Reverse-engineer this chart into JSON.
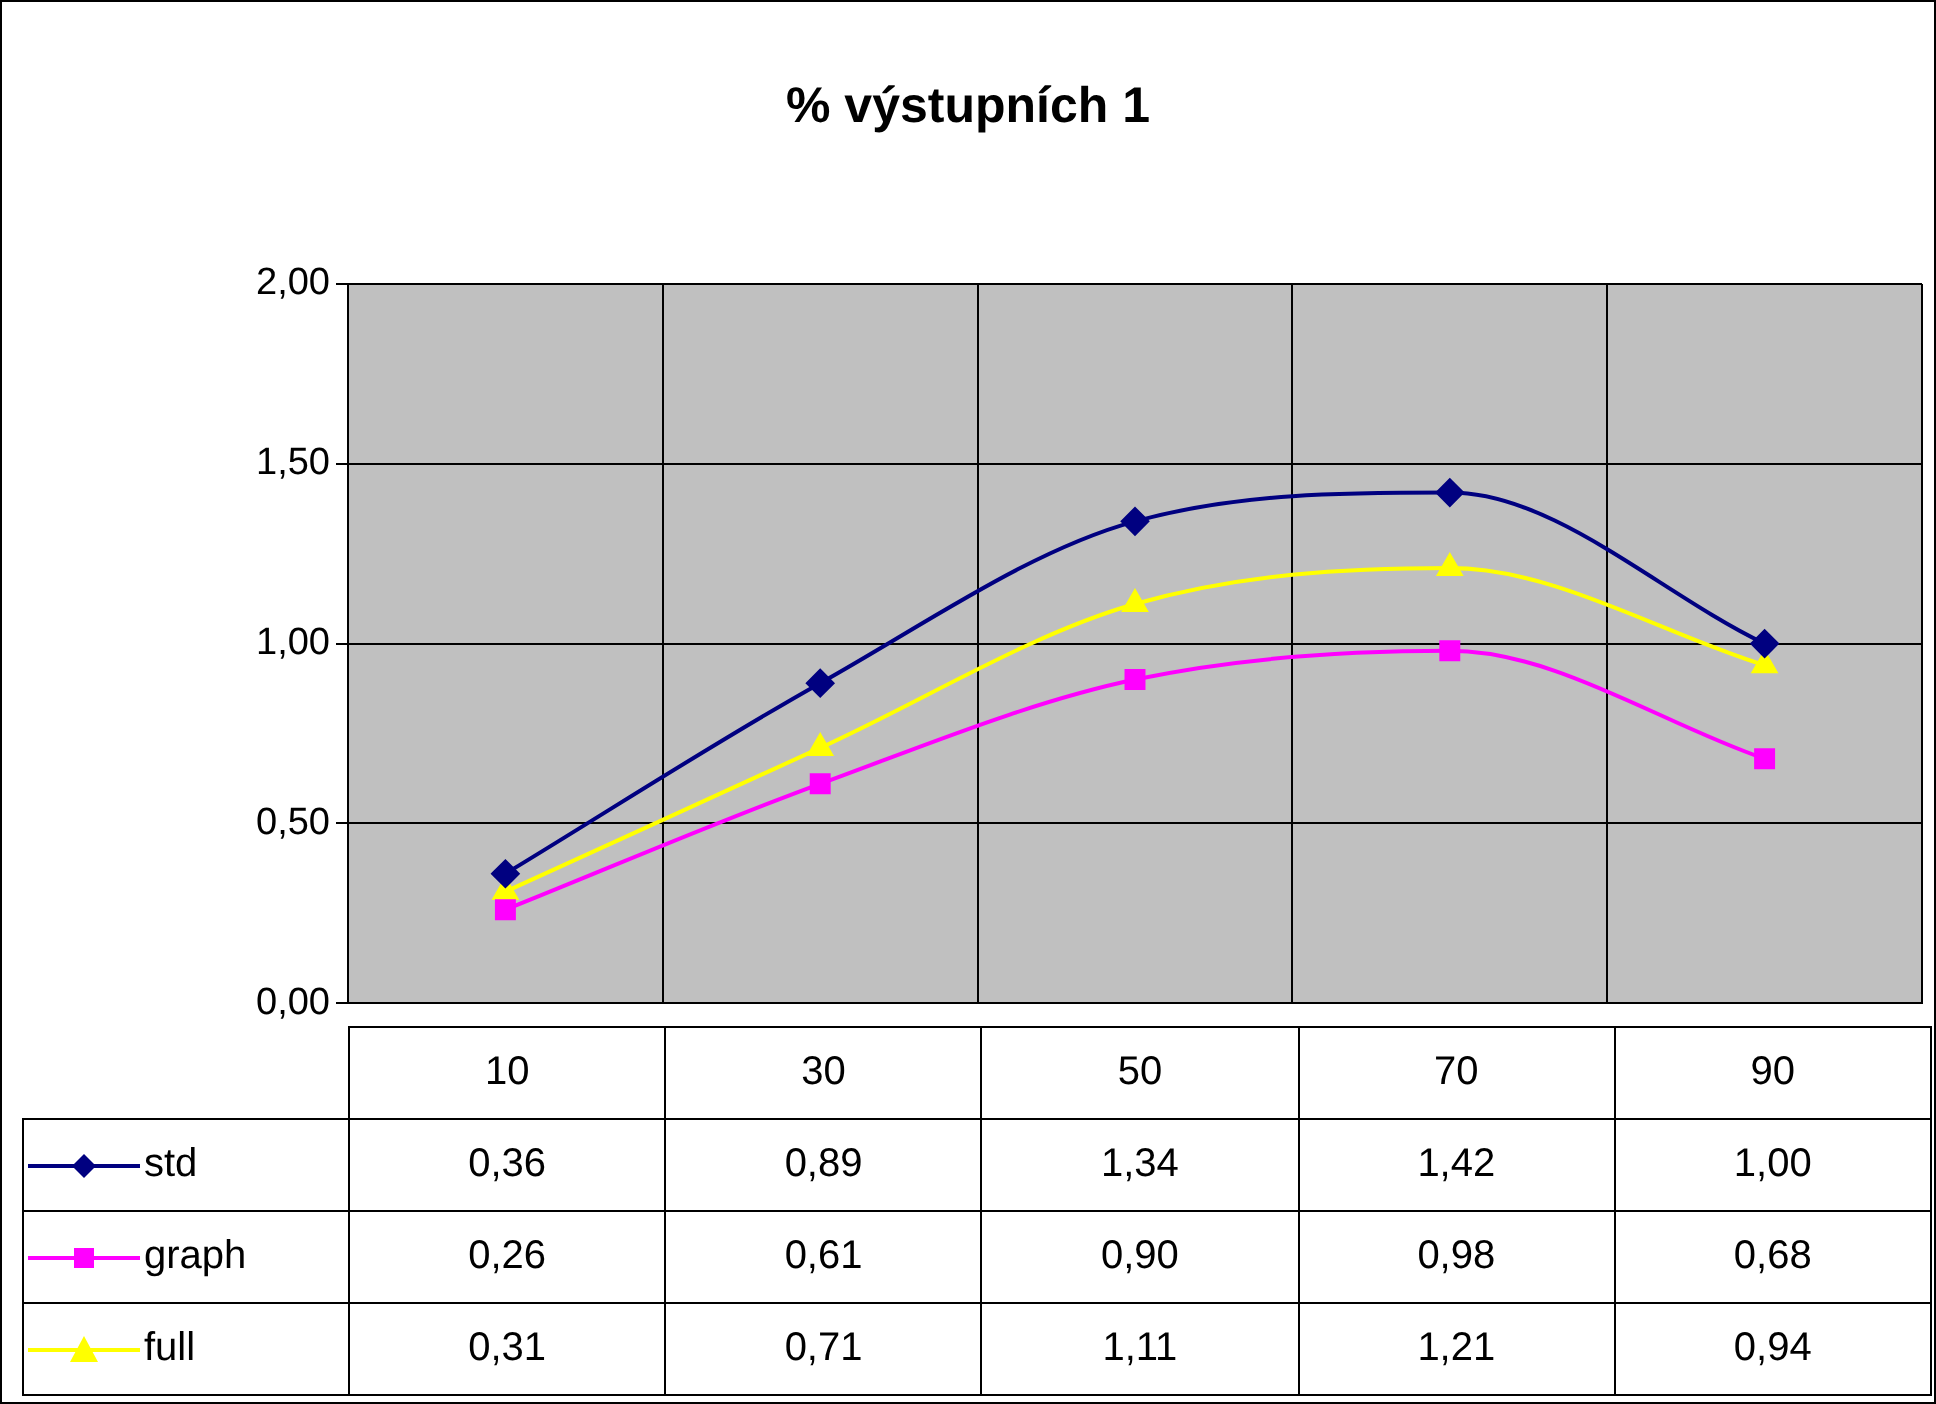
{
  "chart_data": {
    "type": "line",
    "title": "% výstupních 1",
    "categories": [
      "10",
      "30",
      "50",
      "70",
      "90"
    ],
    "series": [
      {
        "name": "std",
        "color": "#000080",
        "marker": "diamond",
        "values": [
          0.36,
          0.89,
          1.34,
          1.42,
          1.0
        ],
        "value_labels": [
          "0,36",
          "0,89",
          "1,34",
          "1,42",
          "1,00"
        ]
      },
      {
        "name": "graph",
        "color": "#ff00ff",
        "marker": "square",
        "values": [
          0.26,
          0.61,
          0.9,
          0.98,
          0.68
        ],
        "value_labels": [
          "0,26",
          "0,61",
          "0,90",
          "0,98",
          "0,68"
        ]
      },
      {
        "name": "full",
        "color": "#ffff00",
        "marker": "triangle",
        "values": [
          0.31,
          0.71,
          1.11,
          1.21,
          0.94
        ],
        "value_labels": [
          "0,31",
          "0,71",
          "1,11",
          "1,21",
          "0,94"
        ]
      }
    ],
    "ylim": [
      0,
      2
    ],
    "yticks": [
      {
        "value": 0,
        "label": "0,00"
      },
      {
        "value": 0.5,
        "label": "0,50"
      },
      {
        "value": 1,
        "label": "1,00"
      },
      {
        "value": 1.5,
        "label": "1,50"
      },
      {
        "value": 2,
        "label": "2,00"
      }
    ],
    "grid": true,
    "legend": "bottom"
  }
}
